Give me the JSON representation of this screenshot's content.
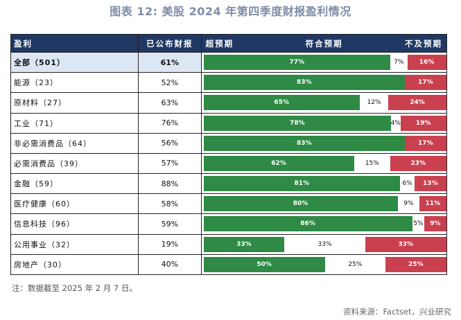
{
  "title": "图表 12: 美股 2024 年第四季度财报盈利情况",
  "headers": {
    "name": "盈利",
    "reported": "已公布财报",
    "beat": "超预期",
    "meet": "符合预期",
    "miss": "不及预期"
  },
  "chart_data": {
    "type": "bar",
    "stacked": true,
    "orientation": "horizontal",
    "categories": [
      "全部（501）",
      "能源（23）",
      "原材料（27）",
      "工业（71）",
      "非必需消费品（64）",
      "必需消费品（39）",
      "金融（59）",
      "医疗健康（60）",
      "信息科技（96）",
      "公用事业（32）",
      "房地产（30）"
    ],
    "reported": [
      "61%",
      "52%",
      "63%",
      "76%",
      "56%",
      "57%",
      "88%",
      "58%",
      "59%",
      "19%",
      "40%"
    ],
    "series": [
      {
        "name": "超预期",
        "values": [
          77,
          83,
          65,
          78,
          83,
          62,
          81,
          80,
          86,
          33,
          50
        ]
      },
      {
        "name": "符合预期",
        "values": [
          7,
          0,
          12,
          4,
          0,
          15,
          6,
          9,
          5,
          33,
          25
        ]
      },
      {
        "name": "不及预期",
        "values": [
          16,
          17,
          24,
          19,
          17,
          23,
          13,
          11,
          9,
          33,
          25
        ]
      }
    ],
    "unit": "%",
    "highlight_row": 0,
    "colors": {
      "beat": "#2E8A44",
      "meet": "#FFFFFF",
      "miss": "#C9404F",
      "header": "#1F3864"
    }
  },
  "note": "注：数据截至 2025 年 2 月 7 日。",
  "source": "资料来源：Factset，兴业研究"
}
